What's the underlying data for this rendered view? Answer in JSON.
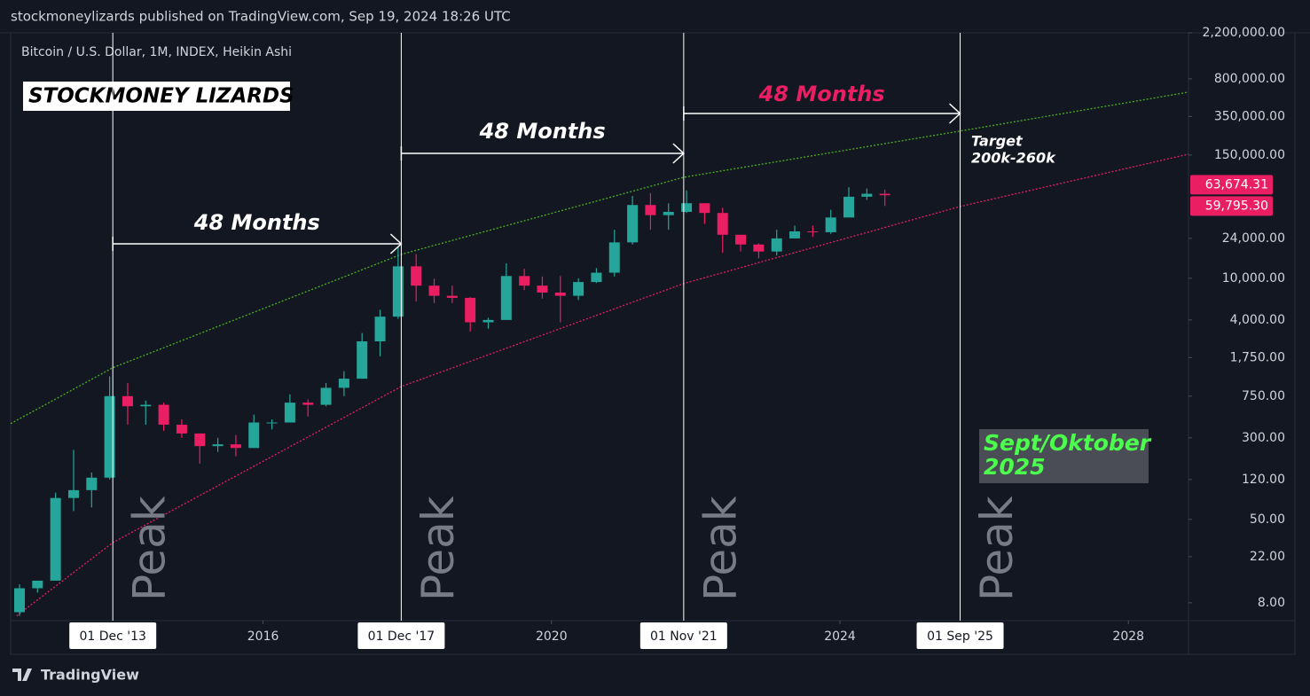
{
  "header": "stockmoneylizards published on TradingView.com, Sep 19, 2024 18:26 UTC",
  "footer_brand": "TradingView",
  "chart_data": {
    "type": "candlestick",
    "title": "STOCKMONEY LIZARDS",
    "subtitle": "Bitcoin / U.S. Dollar, 1M, INDEX, Heikin Ashi",
    "log_scale": true,
    "up_color": "#26a69a",
    "down_color": "#e91e63",
    "xlim": [
      "2012-07",
      "2028-11"
    ],
    "ylim": [
      5.4,
      2200000
    ],
    "xticks": [
      {
        "value": "2016-01",
        "label": "2016"
      },
      {
        "value": "2020-01",
        "label": "2020"
      },
      {
        "value": "2024-01",
        "label": "2024"
      },
      {
        "value": "2028-01",
        "label": "2028"
      }
    ],
    "yticks": [
      {
        "value": 2200000,
        "label": "2,200,000.00"
      },
      {
        "value": 800000,
        "label": "800,000.00"
      },
      {
        "value": 350000,
        "label": "350,000.00"
      },
      {
        "value": 150000,
        "label": "150,000.00"
      },
      {
        "value": 24000,
        "label": "24,000.00"
      },
      {
        "value": 10000,
        "label": "10,000.00"
      },
      {
        "value": 4000,
        "label": "4,000.00"
      },
      {
        "value": 1750,
        "label": "1,750.00"
      },
      {
        "value": 750,
        "label": "750.00"
      },
      {
        "value": 300,
        "label": "300.00"
      },
      {
        "value": 120,
        "label": "120.00"
      },
      {
        "value": 50,
        "label": "50.00"
      },
      {
        "value": 22,
        "label": "22.00"
      },
      {
        "value": 8,
        "label": "8.00"
      }
    ],
    "price_labels": [
      {
        "value": 63674.31,
        "label": "63,674.31"
      },
      {
        "value": 59795.3,
        "label": "59,795.30"
      }
    ],
    "price_label_color": "#e91e63",
    "vlines": [
      {
        "value": "2013-12",
        "label": "01 Dec '13"
      },
      {
        "value": "2017-12",
        "label": "01 Dec '17"
      },
      {
        "value": "2021-11",
        "label": "01 Nov '21"
      },
      {
        "value": "2025-09",
        "label": "01 Sep '25"
      }
    ],
    "vline_note": "Peak",
    "intervals": [
      {
        "label": "48 Months",
        "color": "#ffffff"
      },
      {
        "label": "48 Months",
        "color": "#ffffff"
      },
      {
        "label": "48 Months",
        "color": "#e91e63"
      }
    ],
    "target_note": [
      "Target",
      "200k-260k"
    ],
    "box_note": [
      "Sept/Oktober",
      "2025"
    ],
    "box_note_color": "#4cff4c",
    "lines": [
      {
        "color": "#4caf1f",
        "x": [
          "2012-07",
          "2013-12",
          "2017-12",
          "2021-11",
          "2025-09",
          "2028-11"
        ],
        "values": [
          410,
          1400,
          16900,
          92000,
          254000,
          597000
        ]
      },
      {
        "color": "#e91e63",
        "x": [
          "2012-08",
          "2013-12",
          "2017-12",
          "2021-11",
          "2025-09",
          "2028-11"
        ],
        "values": [
          6,
          30,
          926,
          8900,
          48400,
          152800
        ]
      }
    ],
    "dates": [
      "2012-07",
      "2012-10",
      "2013-01",
      "2013-04",
      "2013-07",
      "2013-10",
      "2014-01",
      "2014-04",
      "2014-07",
      "2014-10",
      "2015-01",
      "2015-04",
      "2015-07",
      "2015-10",
      "2016-01",
      "2016-04",
      "2016-07",
      "2016-10",
      "2017-01",
      "2017-04",
      "2017-07",
      "2017-10",
      "2018-01",
      "2018-04",
      "2018-07",
      "2018-10",
      "2019-01",
      "2019-04",
      "2019-07",
      "2019-10",
      "2020-01",
      "2020-04",
      "2020-07",
      "2020-10",
      "2021-01",
      "2021-04",
      "2021-07",
      "2021-10",
      "2022-01",
      "2022-04",
      "2022-07",
      "2022-10",
      "2023-01",
      "2023-04",
      "2023-07",
      "2023-10",
      "2024-01",
      "2024-04",
      "2024-07"
    ],
    "open": [
      6.5,
      11,
      13,
      80,
      95,
      125,
      750,
      600,
      620,
      400,
      330,
      250,
      260,
      240,
      420,
      420,
      650,
      620,
      900,
      1100,
      2500,
      4300,
      13000,
      8500,
      6800,
      6500,
      3800,
      4000,
      10500,
      8500,
      7300,
      6800,
      9200,
      11300,
      22000,
      50000,
      40000,
      43000,
      52000,
      42000,
      26000,
      21000,
      18000,
      24000,
      28000,
      27500,
      38000,
      60000,
      64000
    ],
    "high": [
      12,
      13,
      90,
      230,
      140,
      1160,
      1000,
      680,
      650,
      450,
      330,
      300,
      320,
      500,
      450,
      780,
      700,
      1000,
      1300,
      3000,
      5000,
      19700,
      17000,
      9900,
      8500,
      6600,
      4200,
      13900,
      12300,
      10400,
      10500,
      10000,
      12500,
      29000,
      61000,
      65000,
      52000,
      69000,
      52000,
      47000,
      26000,
      21500,
      29000,
      31800,
      31800,
      45000,
      73800,
      72000,
      70000
    ],
    "low": [
      6,
      10,
      13,
      60,
      65,
      120,
      400,
      400,
      350,
      300,
      170,
      220,
      200,
      240,
      360,
      420,
      480,
      600,
      750,
      1100,
      1800,
      4100,
      6000,
      5800,
      5800,
      3100,
      3300,
      4000,
      7700,
      6400,
      3800,
      6200,
      9000,
      10400,
      21000,
      29000,
      29000,
      42000,
      33000,
      17500,
      18000,
      15500,
      16500,
      24000,
      24800,
      26500,
      38000,
      56000,
      49000
    ],
    "close": [
      11,
      13,
      80,
      95,
      125,
      750,
      600,
      620,
      400,
      330,
      250,
      260,
      240,
      420,
      420,
      650,
      620,
      900,
      1100,
      2500,
      4300,
      13000,
      8500,
      6800,
      6500,
      3800,
      4000,
      10500,
      8500,
      7300,
      6800,
      9200,
      11300,
      22000,
      50000,
      40000,
      43000,
      52000,
      42000,
      26000,
      21000,
      18000,
      24000,
      28000,
      27500,
      38000,
      60000,
      64000,
      62000
    ]
  }
}
